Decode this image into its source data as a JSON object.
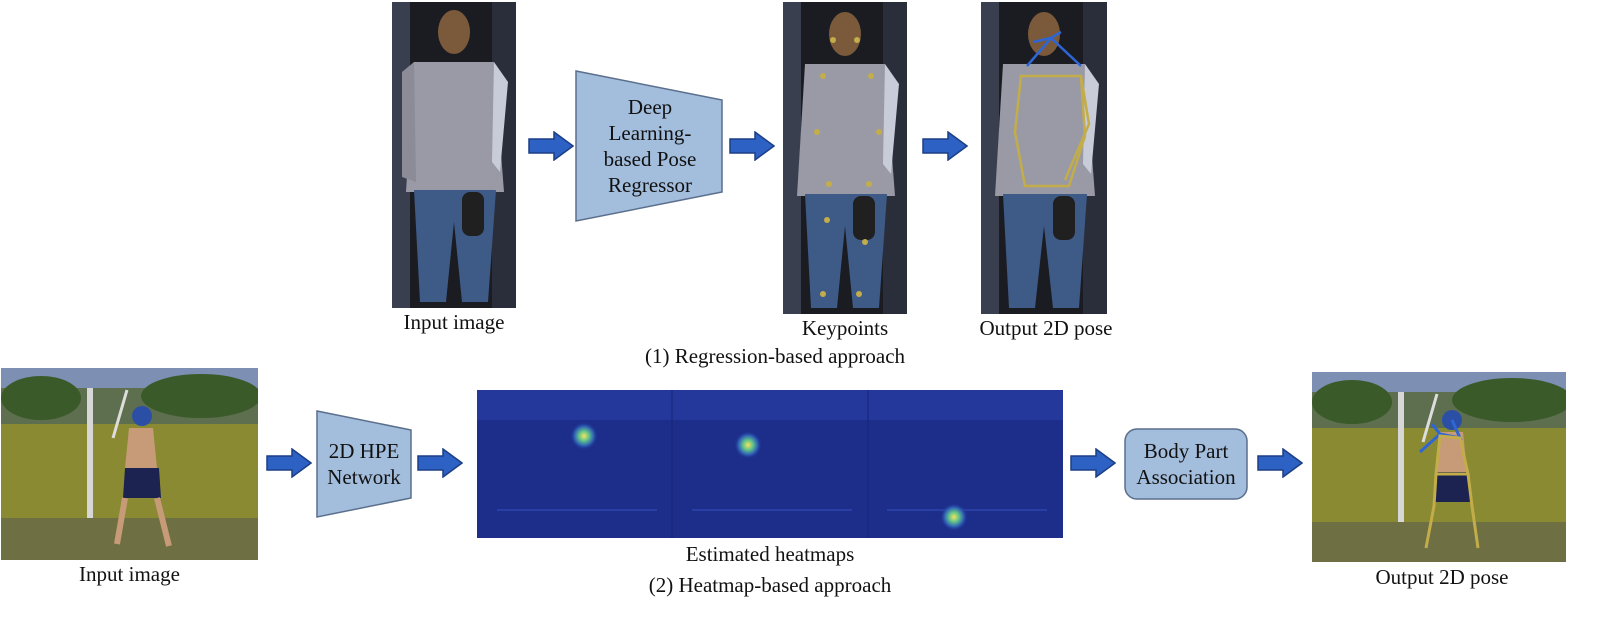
{
  "colors": {
    "box_fill": "#a3bddd",
    "box_stroke": "#5a6f8c",
    "arrow_fill": "#2d61c4",
    "arrow_stroke": "#1c3f86",
    "heatmap_bg": "#1d2d8a",
    "grass": "#8a8a33",
    "skeleton_yellow": "#c3ad4a",
    "skeleton_blue": "#2e66d6"
  },
  "regression": {
    "input_label": "Input image",
    "regressor_line1": "Deep",
    "regressor_line2": "Learning-",
    "regressor_line3": "based Pose",
    "regressor_line4": "Regressor",
    "keypoints_label": "Keypoints",
    "output_label": "Output 2D pose",
    "caption": "(1) Regression-based approach"
  },
  "heatmap": {
    "input_label": "Input image",
    "network_line1": "2D HPE",
    "network_line2": "Network",
    "heatmaps_label": "Estimated heatmaps",
    "association_line1": "Body Part",
    "association_line2": "Association",
    "output_label": "Output 2D pose",
    "caption": "(2) Heatmap-based approach"
  }
}
